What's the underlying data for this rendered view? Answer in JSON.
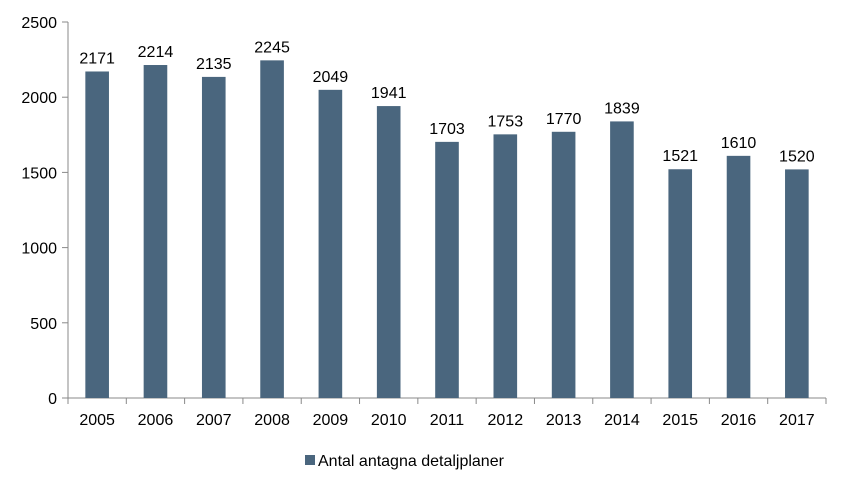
{
  "chart_data": {
    "type": "bar",
    "title": "",
    "xlabel": "",
    "ylabel": "",
    "categories": [
      "2005",
      "2006",
      "2007",
      "2008",
      "2009",
      "2010",
      "2011",
      "2012",
      "2013",
      "2014",
      "2015",
      "2016",
      "2017"
    ],
    "series": [
      {
        "name": "Antal antagna detaljplaner",
        "values": [
          2171,
          2214,
          2135,
          2245,
          2049,
          1941,
          1703,
          1753,
          1770,
          1839,
          1521,
          1610,
          1520
        ],
        "color": "#4a667e"
      }
    ],
    "ylim": [
      0,
      2500
    ],
    "yticks": [
      0,
      500,
      1000,
      1500,
      2000,
      2500
    ],
    "grid": false,
    "data_labels": true,
    "legend_position": "bottom"
  }
}
